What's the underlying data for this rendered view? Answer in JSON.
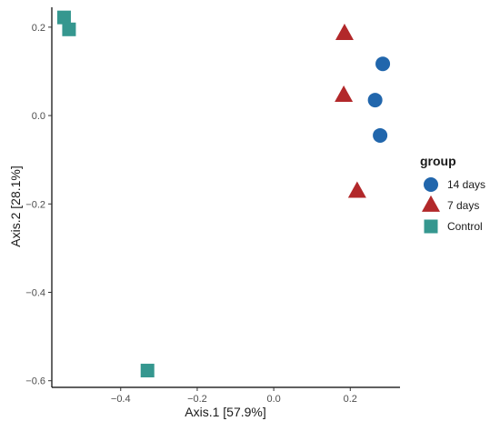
{
  "chart_data": {
    "type": "scatter",
    "title": "",
    "xlabel": "Axis.1   [57.9%]",
    "ylabel": "Axis.2   [28.1%]",
    "xlim": [
      -0.58,
      0.33
    ],
    "ylim": [
      -0.615,
      0.245
    ],
    "x_ticks": [
      -0.4,
      -0.2,
      0.0,
      0.2
    ],
    "x_tick_labels": [
      "−0.4",
      "−0.2",
      "0.0",
      "0.2"
    ],
    "y_ticks": [
      0.2,
      0.0,
      -0.2,
      -0.4,
      -0.6
    ],
    "y_tick_labels": [
      "0.2",
      "0.0",
      "−0.2",
      "−0.4",
      "−0.6"
    ],
    "grid": false,
    "legend": {
      "title": "group",
      "placement": "right"
    },
    "series": [
      {
        "name": "14 days",
        "shape": "circle",
        "color": "#2166ac",
        "points": [
          [
            0.285,
            0.117
          ],
          [
            0.265,
            0.035
          ],
          [
            0.278,
            -0.045
          ]
        ]
      },
      {
        "name": "7 days",
        "shape": "triangle",
        "color": "#b2282a",
        "points": [
          [
            0.185,
            0.185
          ],
          [
            0.183,
            0.045
          ],
          [
            0.218,
            -0.172
          ]
        ]
      },
      {
        "name": "Control",
        "shape": "square",
        "color": "#35978f",
        "points": [
          [
            -0.548,
            0.222
          ],
          [
            -0.535,
            0.195
          ],
          [
            -0.33,
            -0.577
          ]
        ]
      }
    ]
  }
}
